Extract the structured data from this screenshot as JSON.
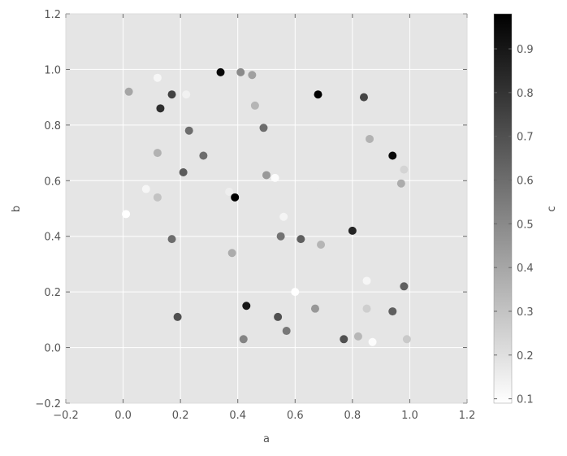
{
  "chart_data": {
    "type": "scatter",
    "title": "",
    "xlabel": "a",
    "ylabel": "b",
    "colorbar_label": "c",
    "xlim": [
      -0.2,
      1.2
    ],
    "ylim": [
      -0.2,
      1.2
    ],
    "clim": [
      0.09,
      0.98
    ],
    "colormap": "Greys",
    "grid": true,
    "background": "#e5e5e5",
    "x_ticks": [
      "−0.2",
      "0.0",
      "0.2",
      "0.4",
      "0.6",
      "0.8",
      "1.0",
      "1.2"
    ],
    "y_ticks": [
      "−0.2",
      "0.0",
      "0.2",
      "0.4",
      "0.6",
      "0.8",
      "1.0",
      "1.2"
    ],
    "colorbar_ticks": [
      "0.1",
      "0.2",
      "0.3",
      "0.4",
      "0.5",
      "0.6",
      "0.7",
      "0.8",
      "0.9"
    ],
    "points": [
      {
        "a": 0.34,
        "b": 0.99,
        "c": 0.96
      },
      {
        "a": 0.41,
        "b": 0.99,
        "c": 0.5
      },
      {
        "a": 0.45,
        "b": 0.98,
        "c": 0.42
      },
      {
        "a": 0.12,
        "b": 0.97,
        "c": 0.12
      },
      {
        "a": 0.02,
        "b": 0.92,
        "c": 0.4
      },
      {
        "a": 0.17,
        "b": 0.91,
        "c": 0.75
      },
      {
        "a": 0.22,
        "b": 0.91,
        "c": 0.14
      },
      {
        "a": 0.13,
        "b": 0.86,
        "c": 0.82
      },
      {
        "a": 0.46,
        "b": 0.87,
        "c": 0.35
      },
      {
        "a": 0.23,
        "b": 0.78,
        "c": 0.6
      },
      {
        "a": 0.49,
        "b": 0.79,
        "c": 0.6
      },
      {
        "a": 0.12,
        "b": 0.7,
        "c": 0.36
      },
      {
        "a": 0.28,
        "b": 0.69,
        "c": 0.6
      },
      {
        "a": 0.21,
        "b": 0.63,
        "c": 0.66
      },
      {
        "a": 0.5,
        "b": 0.62,
        "c": 0.45
      },
      {
        "a": 0.53,
        "b": 0.61,
        "c": 0.1
      },
      {
        "a": 0.08,
        "b": 0.57,
        "c": 0.12
      },
      {
        "a": 0.12,
        "b": 0.54,
        "c": 0.3
      },
      {
        "a": 0.37,
        "b": 0.56,
        "c": 0.15
      },
      {
        "a": 0.39,
        "b": 0.54,
        "c": 0.98
      },
      {
        "a": 0.01,
        "b": 0.48,
        "c": 0.09
      },
      {
        "a": 0.17,
        "b": 0.39,
        "c": 0.6
      },
      {
        "a": 0.38,
        "b": 0.34,
        "c": 0.38
      },
      {
        "a": 0.43,
        "b": 0.15,
        "c": 0.9
      },
      {
        "a": 0.19,
        "b": 0.11,
        "c": 0.7
      },
      {
        "a": 0.42,
        "b": 0.03,
        "c": 0.52
      },
      {
        "a": 0.68,
        "b": 0.91,
        "c": 0.98
      },
      {
        "a": 0.84,
        "b": 0.9,
        "c": 0.74
      },
      {
        "a": 0.86,
        "b": 0.75,
        "c": 0.36
      },
      {
        "a": 0.94,
        "b": 0.69,
        "c": 0.95
      },
      {
        "a": 0.98,
        "b": 0.64,
        "c": 0.24
      },
      {
        "a": 0.97,
        "b": 0.59,
        "c": 0.38
      },
      {
        "a": 0.69,
        "b": 0.58,
        "c": 0.18
      },
      {
        "a": 0.56,
        "b": 0.47,
        "c": 0.13
      },
      {
        "a": 0.55,
        "b": 0.4,
        "c": 0.58
      },
      {
        "a": 0.62,
        "b": 0.39,
        "c": 0.65
      },
      {
        "a": 0.69,
        "b": 0.37,
        "c": 0.35
      },
      {
        "a": 0.8,
        "b": 0.42,
        "c": 0.85
      },
      {
        "a": 0.85,
        "b": 0.24,
        "c": 0.12
      },
      {
        "a": 0.98,
        "b": 0.22,
        "c": 0.65
      },
      {
        "a": 0.6,
        "b": 0.2,
        "c": 0.09
      },
      {
        "a": 0.67,
        "b": 0.14,
        "c": 0.45
      },
      {
        "a": 0.85,
        "b": 0.14,
        "c": 0.26
      },
      {
        "a": 0.94,
        "b": 0.13,
        "c": 0.65
      },
      {
        "a": 0.54,
        "b": 0.11,
        "c": 0.7
      },
      {
        "a": 0.57,
        "b": 0.06,
        "c": 0.56
      },
      {
        "a": 0.77,
        "b": 0.03,
        "c": 0.7
      },
      {
        "a": 0.82,
        "b": 0.04,
        "c": 0.34
      },
      {
        "a": 0.87,
        "b": 0.02,
        "c": 0.1
      },
      {
        "a": 0.99,
        "b": 0.03,
        "c": 0.28
      }
    ]
  }
}
